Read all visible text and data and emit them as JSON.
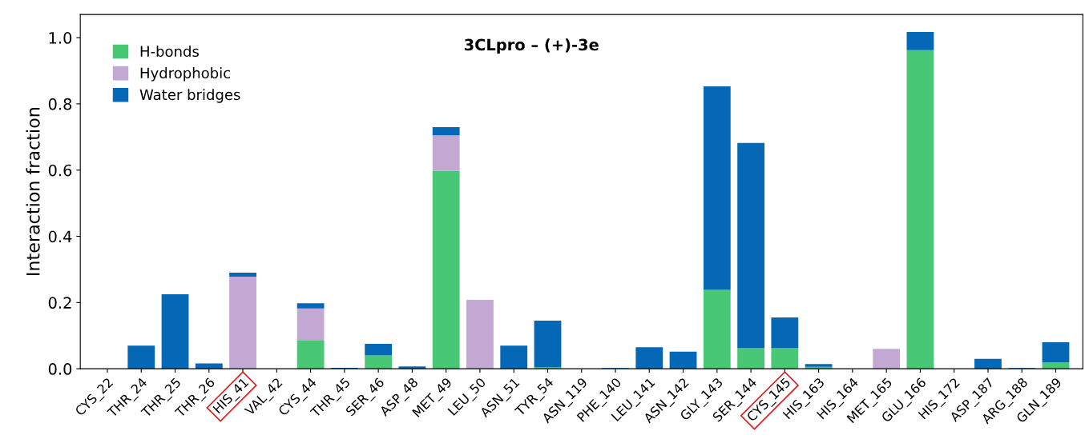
{
  "chart_data": {
    "type": "bar",
    "title": "3CLpro – (+)-3e",
    "ylabel": "Interaction fraction",
    "stacked": true,
    "categories": [
      "CYS_22",
      "THR_24",
      "THR_25",
      "THR_26",
      "HIS_41",
      "VAL_42",
      "CYS_44",
      "THR_45",
      "SER_46",
      "ASP_48",
      "MET_49",
      "LEU_50",
      "ASN_51",
      "TYR_54",
      "ASN_119",
      "PHE_140",
      "LEU_141",
      "ASN_142",
      "GLY_143",
      "SER_144",
      "CYS_145",
      "HIS_163",
      "HIS_164",
      "MET_165",
      "GLU_166",
      "HIS_172",
      "ASP_187",
      "ARG_188",
      "GLN_189"
    ],
    "series": [
      {
        "name": "H-bonds",
        "color": "#48c774",
        "values": [
          0,
          0,
          0,
          0,
          0,
          0,
          0.087,
          0,
          0.04,
          0,
          0.598,
          0,
          0,
          0.005,
          0,
          0,
          0,
          0,
          0.238,
          0.062,
          0.062,
          0.006,
          0,
          0,
          0.962,
          0,
          0,
          0,
          0.02
        ]
      },
      {
        "name": "Hydrophobic",
        "color": "#c3a8d4",
        "values": [
          0,
          0,
          0,
          0,
          0.278,
          0,
          0.095,
          0,
          0,
          0,
          0.107,
          0.208,
          0,
          0,
          0,
          0,
          0,
          0,
          0,
          0,
          0,
          0,
          0,
          0.06,
          null,
          0,
          0,
          0,
          0
        ]
      },
      {
        "name": "Water bridges",
        "color": "#0468b6",
        "values": [
          0,
          0.07,
          0.225,
          0.016,
          0.012,
          0,
          0.016,
          0.003,
          0.035,
          0.007,
          0.025,
          0,
          0.07,
          0.14,
          0,
          0.002,
          0.065,
          0.052,
          0.615,
          0.62,
          0.093,
          0.008,
          0,
          0,
          0.055,
          0,
          0.03,
          0.002,
          0.06
        ]
      }
    ],
    "ylim": [
      0,
      1.07
    ],
    "yticks": [
      {
        "value": 0,
        "label": "0.0"
      },
      0.2,
      0.4,
      0.6,
      0.8,
      {
        "value": 1,
        "label": "1.0"
      }
    ],
    "legend": "top left",
    "grid": false
  }
}
